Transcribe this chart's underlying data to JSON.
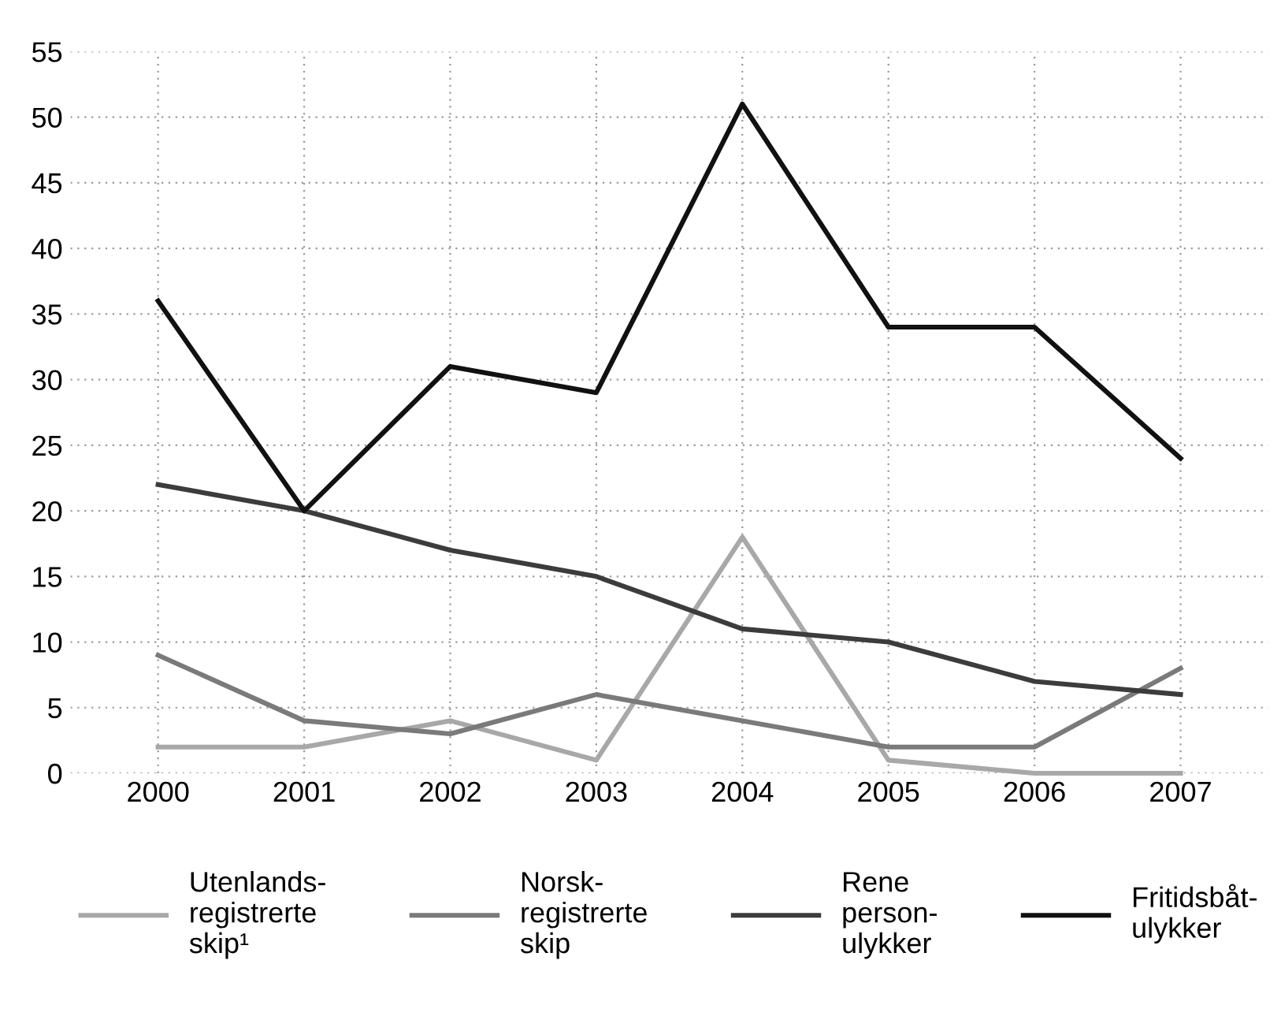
{
  "chart_data": {
    "type": "line",
    "categories": [
      "2000",
      "2001",
      "2002",
      "2003",
      "2004",
      "2005",
      "2006",
      "2007"
    ],
    "series": [
      {
        "name": "Utenlands-\nregistrerte\nskip¹",
        "color": "#a8a8a8",
        "values": [
          2,
          2,
          4,
          1,
          18,
          1,
          0,
          0
        ]
      },
      {
        "name": "Norsk-\nregistrerte\nskip",
        "color": "#7a7a7a",
        "values": [
          9,
          4,
          3,
          6,
          4,
          2,
          2,
          8
        ]
      },
      {
        "name": "Rene\nperson-\nulykker",
        "color": "#3c3c3c",
        "values": [
          22,
          20,
          17,
          15,
          11,
          10,
          7,
          6
        ]
      },
      {
        "name": "Fritidsbåt-\nulykker",
        "color": "#111111",
        "values": [
          36,
          20,
          31,
          29,
          51,
          34,
          34,
          24
        ]
      }
    ],
    "ylim": [
      0,
      55
    ],
    "yticks": [
      0,
      5,
      10,
      15,
      20,
      25,
      30,
      35,
      40,
      45,
      50,
      55
    ],
    "grid": true,
    "legend": "bottom",
    "marker": "none",
    "line_style": "solid"
  }
}
